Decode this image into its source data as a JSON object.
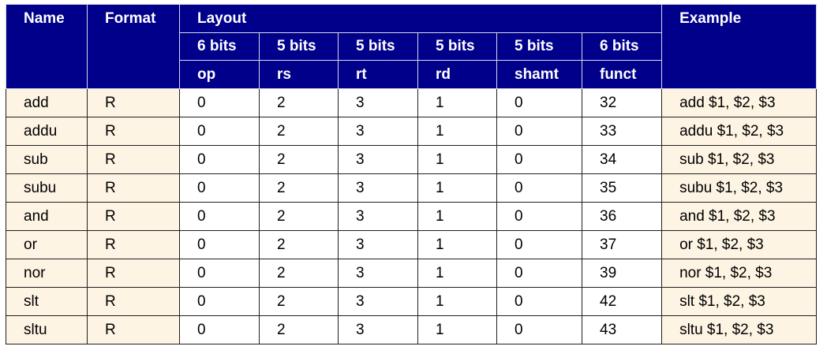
{
  "header": {
    "name": "Name",
    "format": "Format",
    "layout": "Layout",
    "example": "Example",
    "bits": [
      "6 bits",
      "5 bits",
      "5 bits",
      "5 bits",
      "5 bits",
      "6 bits"
    ],
    "fields": [
      "op",
      "rs",
      "rt",
      "rd",
      "shamt",
      "funct"
    ]
  },
  "rows": [
    {
      "name": "add",
      "format": "R",
      "op": "0",
      "rs": "2",
      "rt": "3",
      "rd": "1",
      "shamt": "0",
      "funct": "32",
      "example": "add $1, $2, $3"
    },
    {
      "name": "addu",
      "format": "R",
      "op": "0",
      "rs": "2",
      "rt": "3",
      "rd": "1",
      "shamt": "0",
      "funct": "33",
      "example": "addu $1, $2, $3"
    },
    {
      "name": "sub",
      "format": "R",
      "op": "0",
      "rs": "2",
      "rt": "3",
      "rd": "1",
      "shamt": "0",
      "funct": "34",
      "example": "sub $1, $2, $3"
    },
    {
      "name": "subu",
      "format": "R",
      "op": "0",
      "rs": "2",
      "rt": "3",
      "rd": "1",
      "shamt": "0",
      "funct": "35",
      "example": "subu $1, $2, $3"
    },
    {
      "name": "and",
      "format": "R",
      "op": "0",
      "rs": "2",
      "rt": "3",
      "rd": "1",
      "shamt": "0",
      "funct": "36",
      "example": "and $1, $2, $3"
    },
    {
      "name": "or",
      "format": "R",
      "op": "0",
      "rs": "2",
      "rt": "3",
      "rd": "1",
      "shamt": "0",
      "funct": "37",
      "example": "or $1, $2, $3"
    },
    {
      "name": "nor",
      "format": "R",
      "op": "0",
      "rs": "2",
      "rt": "3",
      "rd": "1",
      "shamt": "0",
      "funct": "39",
      "example": "nor $1, $2, $3"
    },
    {
      "name": "slt",
      "format": "R",
      "op": "0",
      "rs": "2",
      "rt": "3",
      "rd": "1",
      "shamt": "0",
      "funct": "42",
      "example": "slt $1, $2, $3"
    },
    {
      "name": "sltu",
      "format": "R",
      "op": "0",
      "rs": "2",
      "rt": "3",
      "rd": "1",
      "shamt": "0",
      "funct": "43",
      "example": "sltu $1, $2, $3"
    }
  ],
  "colors": {
    "header_bg": "#00008b",
    "header_text": "#ffffff",
    "cream_cell": "#fdf4e3"
  }
}
